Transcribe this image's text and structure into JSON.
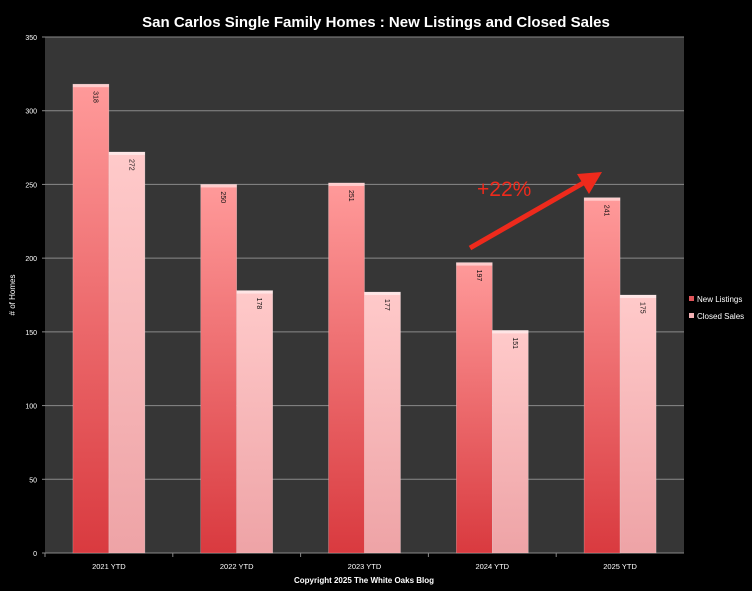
{
  "chart_data": {
    "type": "bar",
    "title": "San Carlos Single Family Homes : New Listings and Closed Sales",
    "xlabel": "Copyright 2025 The White Oaks Blog",
    "ylabel": "# of Homes",
    "ylim": [
      0,
      350
    ],
    "yticks": [
      0,
      50,
      100,
      150,
      200,
      250,
      300,
      350
    ],
    "grid": true,
    "legend_position": "right",
    "categories": [
      "2021 YTD",
      "2022 YTD",
      "2023 YTD",
      "2024 YTD",
      "2025 YTD"
    ],
    "series": [
      {
        "name": "New Listings",
        "values": [
          318,
          250,
          251,
          197,
          241
        ],
        "color_top": "#ff9a9a",
        "color_bottom": "#d93a3f"
      },
      {
        "name": "Closed Sales",
        "values": [
          272,
          178,
          177,
          151,
          175
        ],
        "color_top": "#ffcaca",
        "color_bottom": "#eea3a6"
      }
    ],
    "annotation": {
      "text": "+22%",
      "color": "#ee2a1c"
    },
    "colors": {
      "background": "#000000",
      "plot_area": "#363636",
      "gridline": "#8a8a8a"
    }
  }
}
